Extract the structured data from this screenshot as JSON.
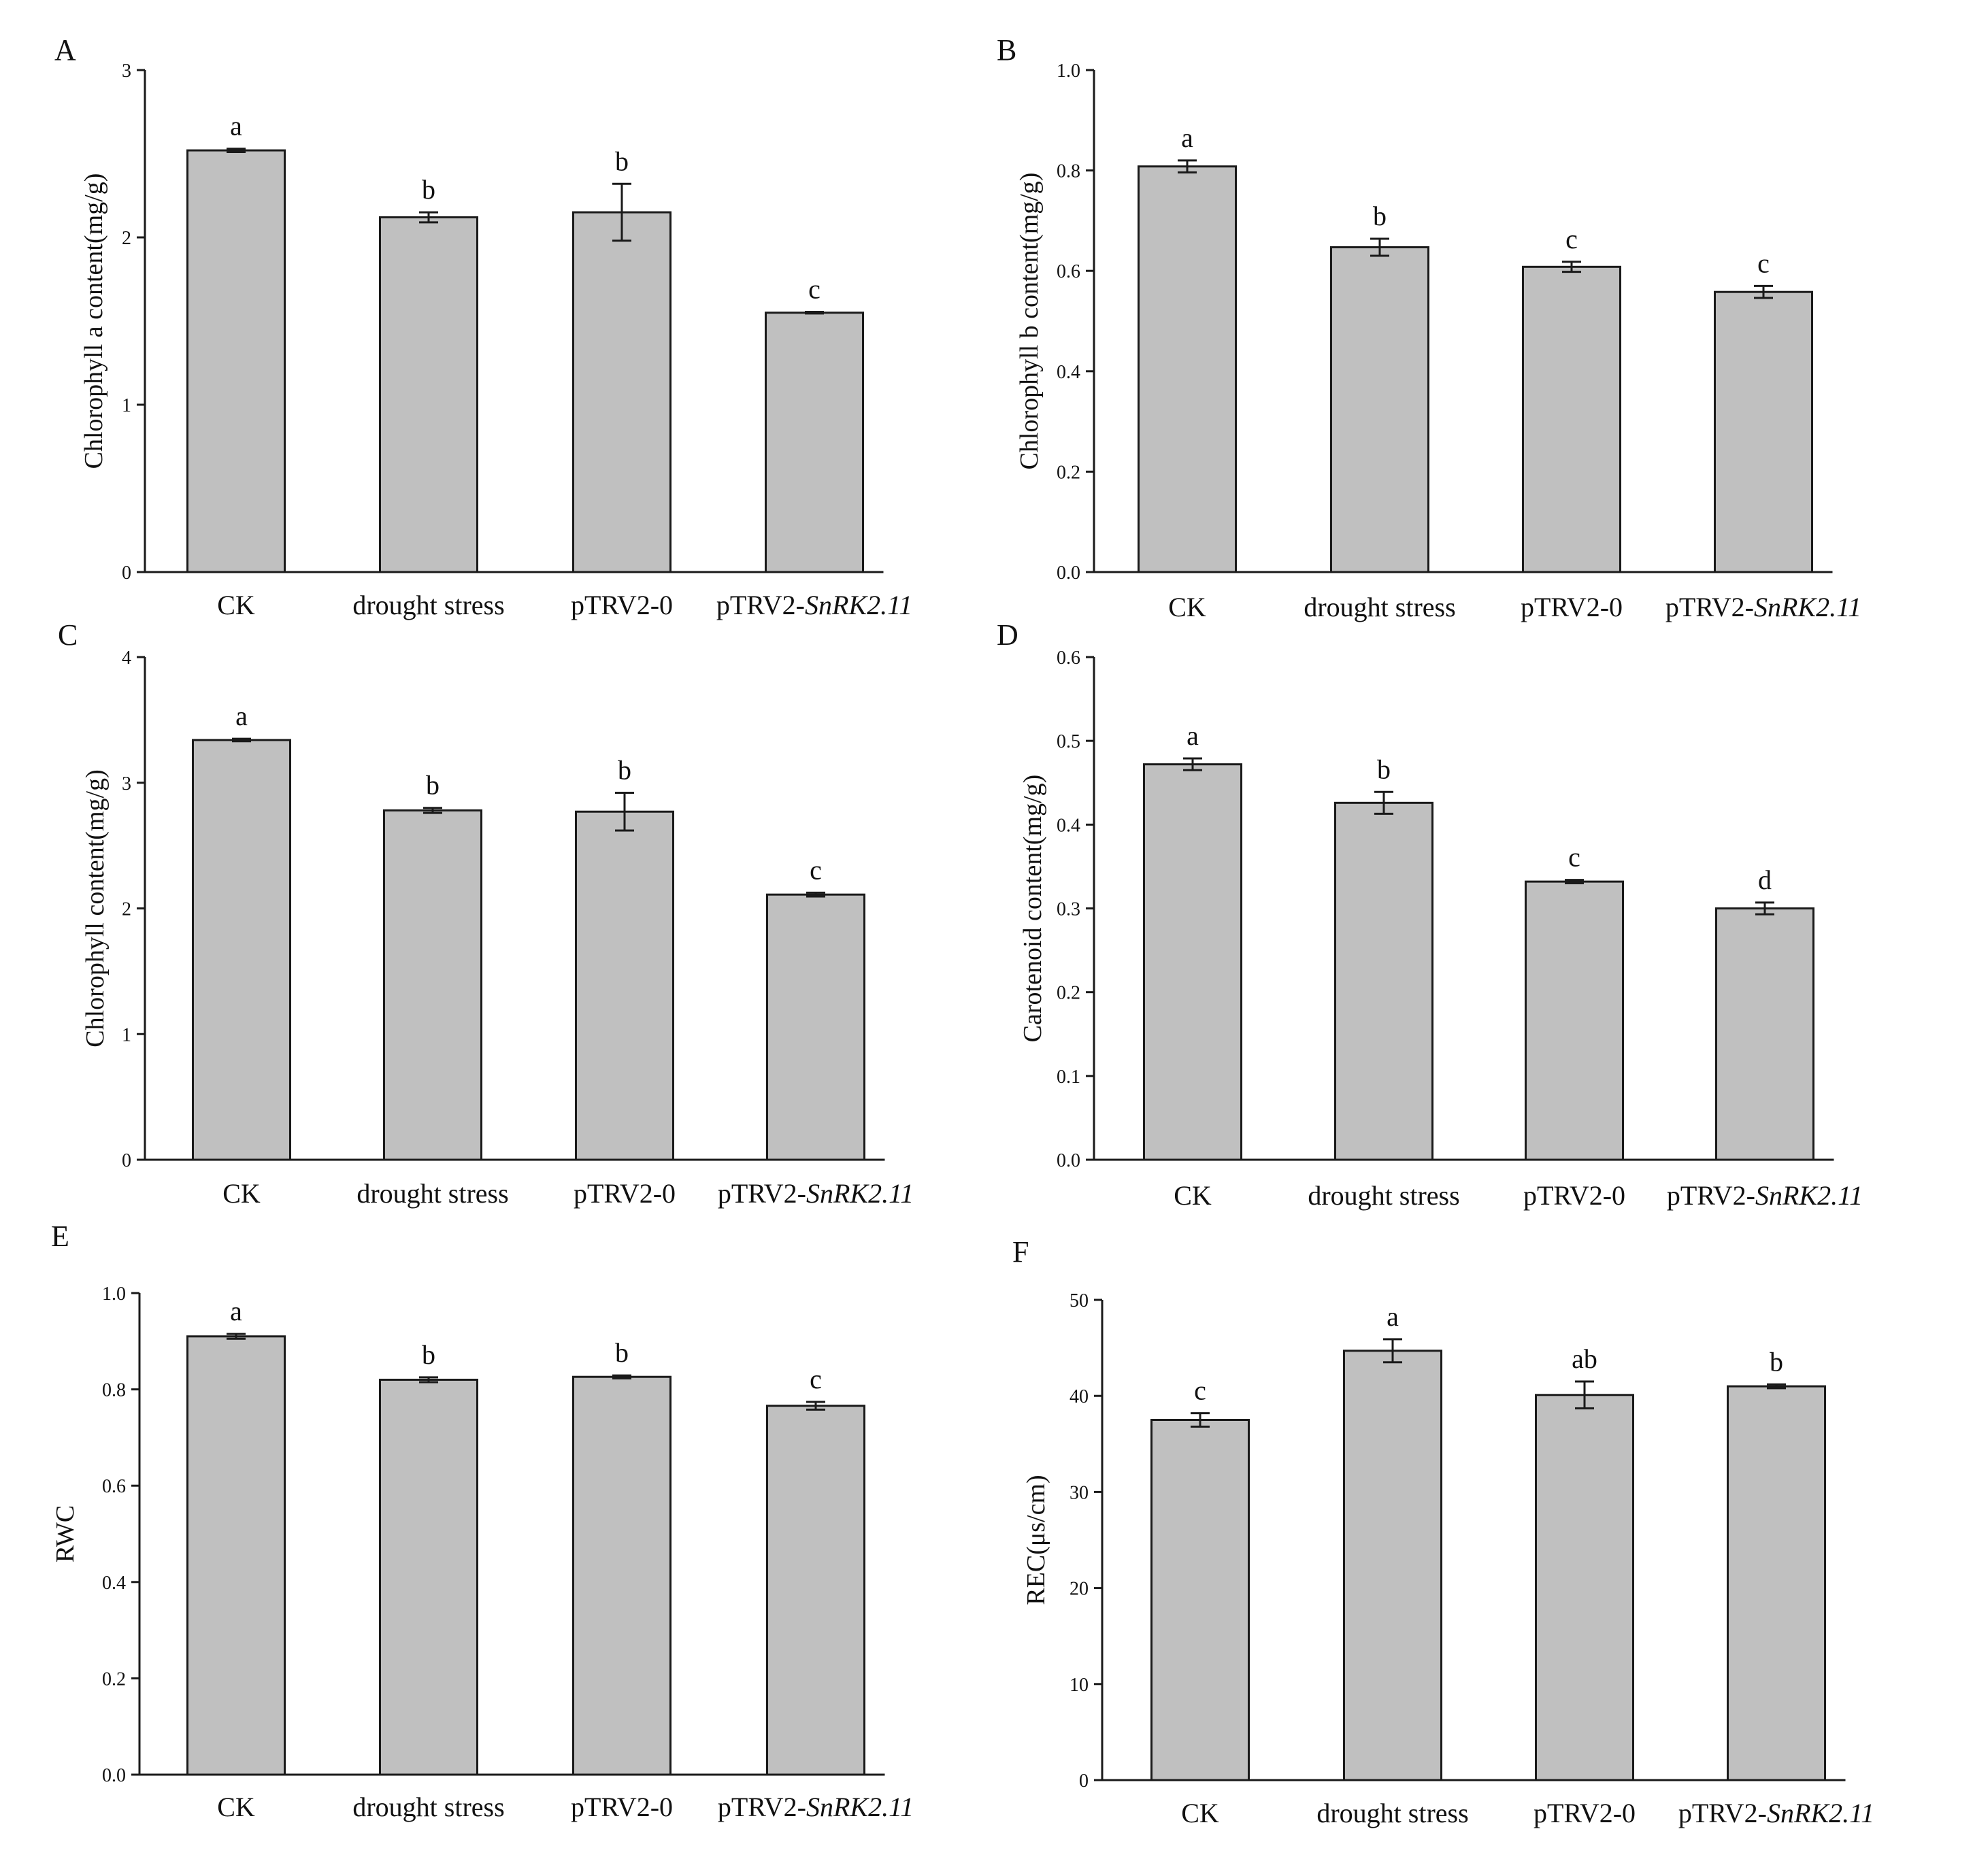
{
  "colors": {
    "bar_fill": "#c0c0c0",
    "bar_stroke": "#1a1a1a",
    "axis": "#1a1a1a",
    "text": "#111111"
  },
  "chart_data": [
    {
      "panel": "A",
      "type": "bar",
      "categories": [
        "CK",
        "drought stress",
        "pTRV2-0",
        "pTRV2-SnRK2.11"
      ],
      "category_label_parts": [
        {
          "plain": "CK",
          "italic": ""
        },
        {
          "plain": "drought stress",
          "italic": ""
        },
        {
          "plain": "pTRV2-0",
          "italic": ""
        },
        {
          "plain": "pTRV2-",
          "italic": "SnRK2.11"
        }
      ],
      "values": [
        2.52,
        2.12,
        2.15,
        1.55
      ],
      "errors": [
        0.01,
        0.03,
        0.17,
        0.005
      ],
      "significance": [
        "a",
        "b",
        "b",
        "c"
      ],
      "ylabel": "Chlorophyll a content(mg/g)",
      "ylim": [
        0,
        3
      ],
      "yticks": [
        "0",
        "1",
        "2",
        "3"
      ]
    },
    {
      "panel": "B",
      "type": "bar",
      "categories": [
        "CK",
        "drought stress",
        "pTRV2-0",
        "pTRV2-SnRK2.11"
      ],
      "category_label_parts": [
        {
          "plain": "CK",
          "italic": ""
        },
        {
          "plain": "drought stress",
          "italic": ""
        },
        {
          "plain": "pTRV2-0",
          "italic": ""
        },
        {
          "plain": "pTRV2-",
          "italic": "SnRK2.11"
        }
      ],
      "values": [
        0.808,
        0.647,
        0.608,
        0.558
      ],
      "errors": [
        0.012,
        0.017,
        0.01,
        0.012
      ],
      "significance": [
        "a",
        "b",
        "c",
        "c"
      ],
      "ylabel": "Chlorophyll b content(mg/g)",
      "ylim": [
        0,
        1.0
      ],
      "yticks": [
        "0.0",
        "0.2",
        "0.4",
        "0.6",
        "0.8",
        "1.0"
      ]
    },
    {
      "panel": "C",
      "type": "bar",
      "categories": [
        "CK",
        "drought stress",
        "pTRV2-0",
        "pTRV2-SnRK2.11"
      ],
      "category_label_parts": [
        {
          "plain": "CK",
          "italic": ""
        },
        {
          "plain": "drought stress",
          "italic": ""
        },
        {
          "plain": "pTRV2-0",
          "italic": ""
        },
        {
          "plain": "pTRV2-",
          "italic": "SnRK2.11"
        }
      ],
      "values": [
        3.34,
        2.78,
        2.77,
        2.11
      ],
      "errors": [
        0.01,
        0.02,
        0.15,
        0.015
      ],
      "significance": [
        "a",
        "b",
        "b",
        "c"
      ],
      "ylabel": "Chlorophyll content(mg/g)",
      "ylim": [
        0,
        4
      ],
      "yticks": [
        "0",
        "1",
        "2",
        "3",
        "4"
      ]
    },
    {
      "panel": "D",
      "type": "bar",
      "categories": [
        "CK",
        "drought stress",
        "pTRV2-0",
        "pTRV2-SnRK2.11"
      ],
      "category_label_parts": [
        {
          "plain": "CK",
          "italic": ""
        },
        {
          "plain": "drought stress",
          "italic": ""
        },
        {
          "plain": "pTRV2-0",
          "italic": ""
        },
        {
          "plain": "pTRV2-",
          "italic": "SnRK2.11"
        }
      ],
      "values": [
        0.472,
        0.426,
        0.332,
        0.3
      ],
      "errors": [
        0.007,
        0.013,
        0.002,
        0.007
      ],
      "significance": [
        "a",
        "b",
        "c",
        "d"
      ],
      "ylabel": "Carotenoid content(mg/g)",
      "ylim": [
        0,
        0.6
      ],
      "yticks": [
        "0.0",
        "0.1",
        "0.2",
        "0.3",
        "0.4",
        "0.5",
        "0.6"
      ]
    },
    {
      "panel": "E",
      "type": "bar",
      "categories": [
        "CK",
        "drought stress",
        "pTRV2-0",
        "pTRV2-SnRK2.11"
      ],
      "category_label_parts": [
        {
          "plain": "CK",
          "italic": ""
        },
        {
          "plain": "drought stress",
          "italic": ""
        },
        {
          "plain": "pTRV2-0",
          "italic": ""
        },
        {
          "plain": "pTRV2-",
          "italic": "SnRK2.11"
        }
      ],
      "values": [
        0.91,
        0.82,
        0.826,
        0.766
      ],
      "errors": [
        0.005,
        0.005,
        0.003,
        0.008
      ],
      "significance": [
        "a",
        "b",
        "b",
        "c"
      ],
      "ylabel": "RWC",
      "ylim": [
        0,
        1.0
      ],
      "yticks": [
        "0.0",
        "0.2",
        "0.4",
        "0.6",
        "0.8",
        "1.0"
      ]
    },
    {
      "panel": "F",
      "type": "bar",
      "categories": [
        "CK",
        "drought stress",
        "pTRV2-0",
        "pTRV2-SnRK2.11"
      ],
      "category_label_parts": [
        {
          "plain": "CK",
          "italic": ""
        },
        {
          "plain": "drought stress",
          "italic": ""
        },
        {
          "plain": "pTRV2-0",
          "italic": ""
        },
        {
          "plain": "pTRV2-",
          "italic": "SnRK2.11"
        }
      ],
      "values": [
        37.5,
        44.7,
        40.1,
        41.0
      ],
      "errors": [
        0.7,
        1.2,
        1.4,
        0.2
      ],
      "significance": [
        "c",
        "a",
        "ab",
        "b"
      ],
      "ylabel": "REC(μs/cm)",
      "ylim": [
        0,
        50
      ],
      "yticks": [
        "0",
        "10",
        "20",
        "30",
        "40",
        "50"
      ]
    }
  ]
}
